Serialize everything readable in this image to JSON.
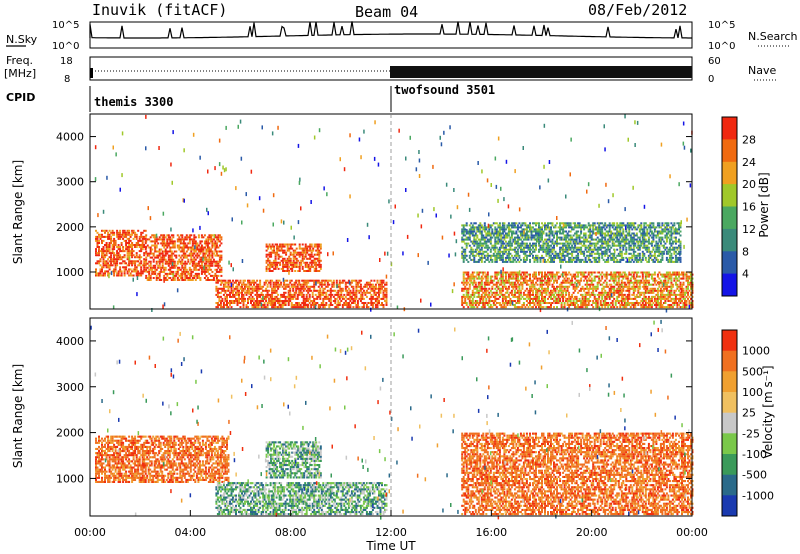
{
  "header": {
    "site": "Inuvik (fitACF)",
    "beam": "Beam 04",
    "date": "08/Feb/2012"
  },
  "summary": {
    "nsky": {
      "label": "N.Sky",
      "ticks": [
        "10^5",
        "10^0"
      ],
      "right_ticks": [
        "10^5",
        "10^0"
      ],
      "right_label": "N.Search"
    },
    "freq": {
      "label_line1": "Freq.",
      "label_line2": "[MHz]",
      "ticks": [
        "18",
        "8"
      ],
      "right_ticks": [
        "60",
        "0"
      ],
      "right_label": "Nave"
    },
    "cpid": {
      "label": "CPID",
      "segments": [
        {
          "name": "themis 3300",
          "start_hour": 0,
          "end_hour": 12
        },
        {
          "name": "twofsound 3501",
          "start_hour": 12,
          "end_hour": 24
        }
      ]
    }
  },
  "chart_data": [
    {
      "type": "heatmap",
      "panel": "power",
      "ylabel": "Slant Range [km]",
      "xlabel": "",
      "xlim": [
        0,
        24
      ],
      "ylim": [
        180,
        4500
      ],
      "yticks": [
        "1000",
        "2000",
        "3000",
        "4000"
      ],
      "colorbar": {
        "label": "Power [dB]",
        "ticks": [
          "4",
          "8",
          "12",
          "16",
          "20",
          "24",
          "28"
        ],
        "range": [
          0,
          30
        ],
        "colors": [
          "#1414e6",
          "#2a5aa8",
          "#3a8a7a",
          "#4aa860",
          "#a0c82a",
          "#f0a020",
          "#f06a10",
          "#f02810"
        ]
      },
      "echo_regions": [
        {
          "t_start": 0.2,
          "t_end": 2.2,
          "r_start": 900,
          "r_end": 1900,
          "level": "high"
        },
        {
          "t_start": 2.2,
          "t_end": 5.2,
          "r_start": 800,
          "r_end": 1800,
          "level": "high"
        },
        {
          "t_start": 5.0,
          "t_end": 11.8,
          "r_start": 200,
          "r_end": 800,
          "level": "high"
        },
        {
          "t_start": 7.0,
          "t_end": 9.2,
          "r_start": 1000,
          "r_end": 1600,
          "level": "high"
        },
        {
          "t_start": 14.8,
          "t_end": 24.0,
          "r_start": 200,
          "r_end": 1000,
          "level": "mid"
        },
        {
          "t_start": 14.8,
          "t_end": 23.5,
          "r_start": 1200,
          "r_end": 2100,
          "level": "low"
        }
      ]
    },
    {
      "type": "heatmap",
      "panel": "velocity",
      "ylabel": "Slant Range [km]",
      "xlabel": "Time UT",
      "xlim": [
        0,
        24
      ],
      "ylim": [
        180,
        4500
      ],
      "xticks": [
        "00:00",
        "04:00",
        "08:00",
        "12:00",
        "16:00",
        "20:00",
        "00:00"
      ],
      "yticks": [
        "1000",
        "2000",
        "3000",
        "4000"
      ],
      "colorbar": {
        "label": "Velocity [m s⁻¹]",
        "ticks": [
          "1000",
          "500",
          "100",
          "25",
          "-25",
          "-100",
          "-500",
          "-1000"
        ],
        "colors": [
          "#1a3ab0",
          "#2a6a8a",
          "#3a9a5a",
          "#7ac84a",
          "#c8c8c8",
          "#f0c060",
          "#f0a030",
          "#f07020",
          "#f03010"
        ]
      },
      "echo_regions": [
        {
          "t_start": 0.2,
          "t_end": 5.5,
          "r_start": 900,
          "r_end": 1900,
          "level": "away"
        },
        {
          "t_start": 5.0,
          "t_end": 11.8,
          "r_start": 200,
          "r_end": 900,
          "level": "toward"
        },
        {
          "t_start": 7.0,
          "t_end": 9.2,
          "r_start": 1000,
          "r_end": 1800,
          "level": "toward"
        },
        {
          "t_start": 14.8,
          "t_end": 24.0,
          "r_start": 200,
          "r_end": 2000,
          "level": "away"
        }
      ]
    }
  ]
}
